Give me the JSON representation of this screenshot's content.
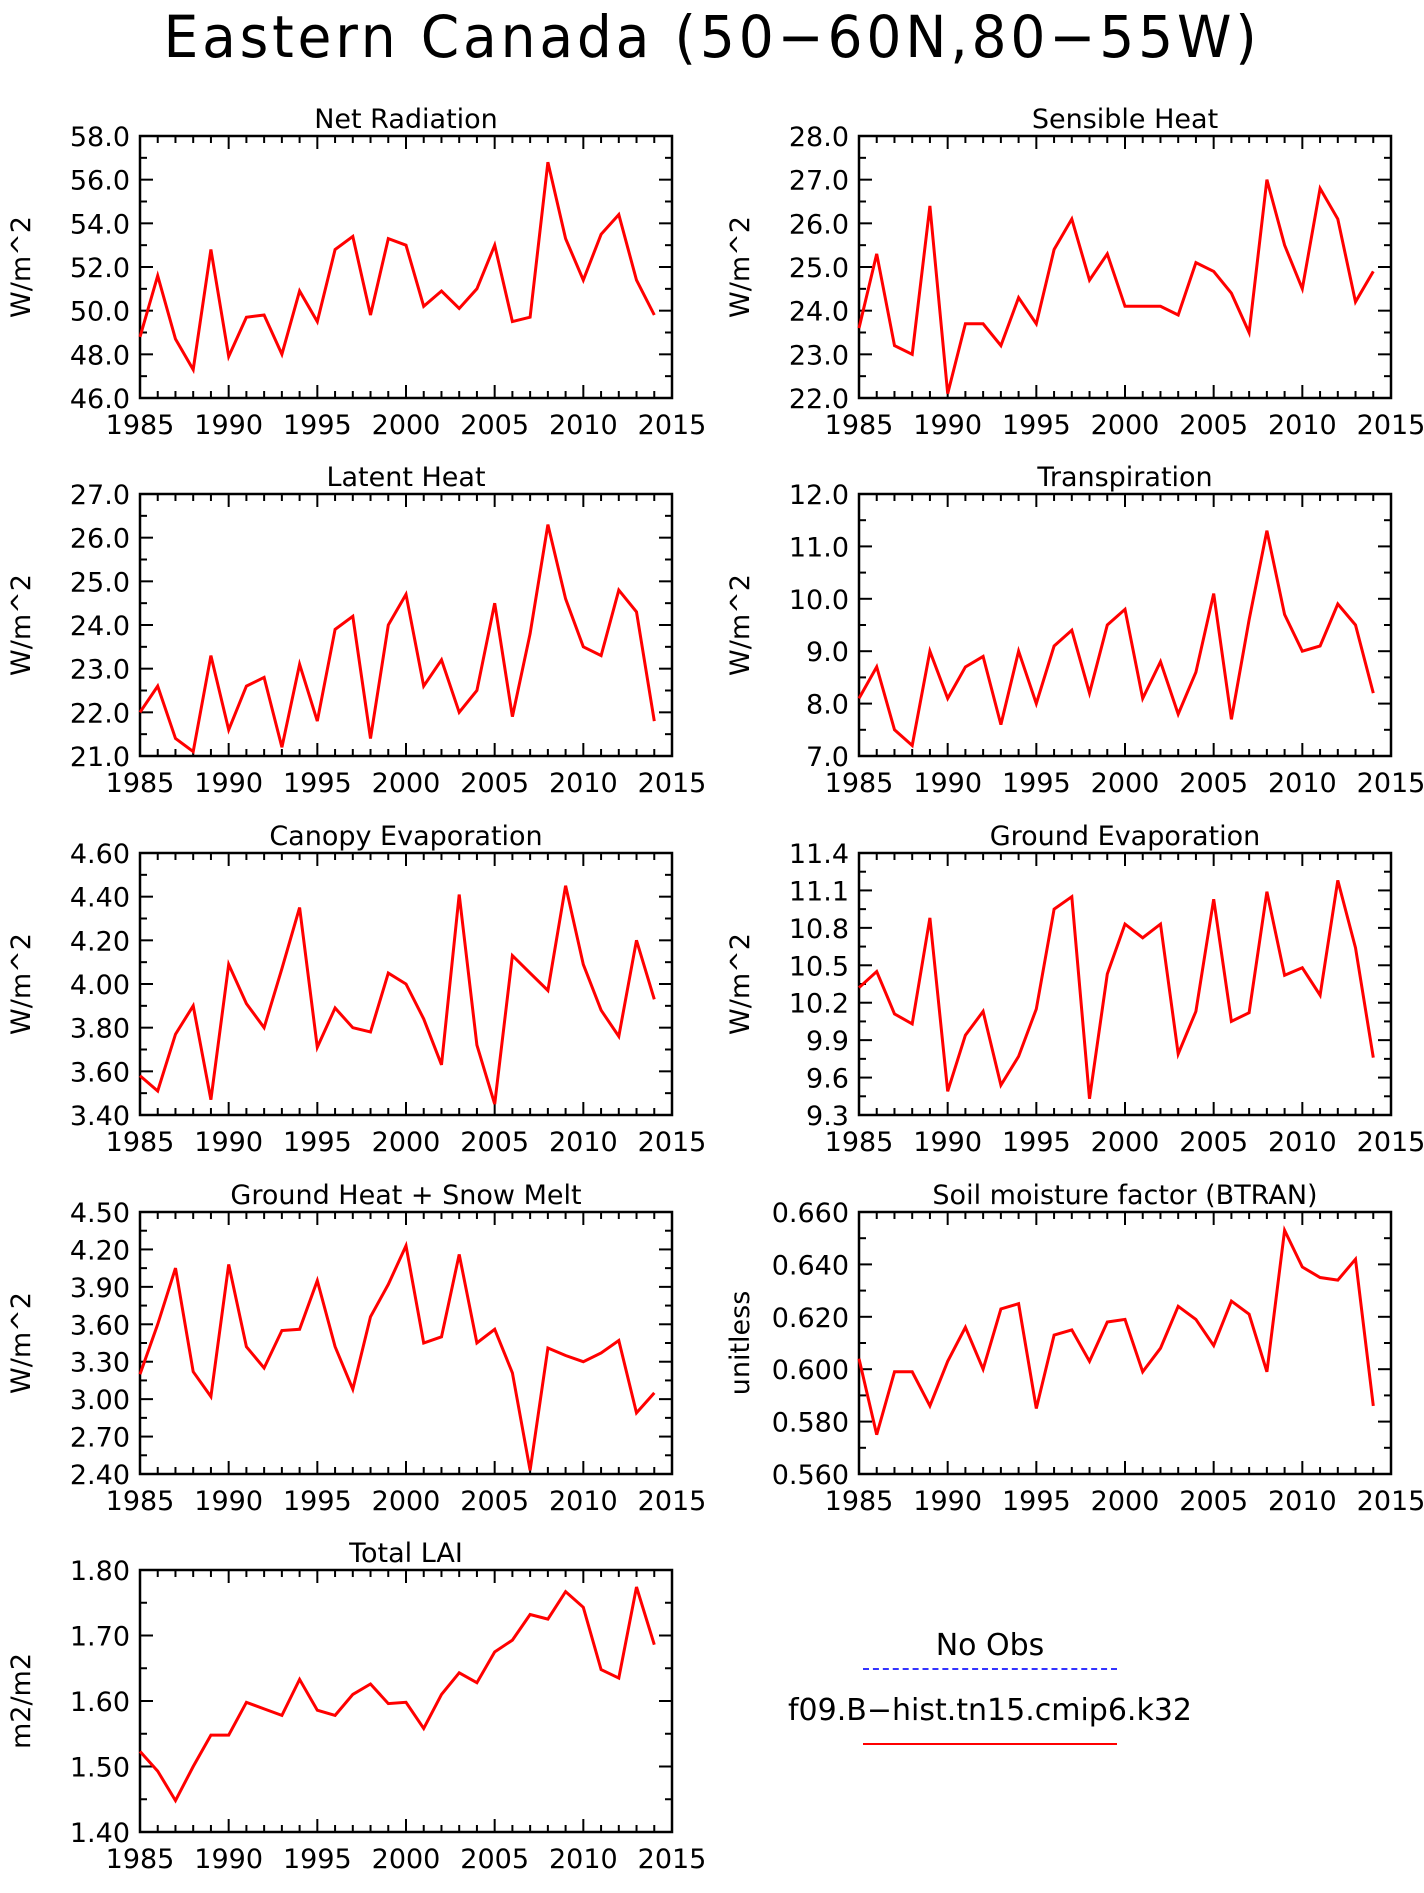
{
  "page": {
    "title": "Eastern Canada (50−60N,80−55W)"
  },
  "legend": {
    "obs_label": "No Obs",
    "obs_color": "#3333ff",
    "model_label": "f09.B−hist.tn15.cmip6.k32",
    "model_color": "#ff0000"
  },
  "chart_data": [
    {
      "type": "line",
      "title": "Net Radiation",
      "ylabel": "W/m^2",
      "xlim": [
        1985,
        2015
      ],
      "ylim": [
        46.0,
        58.0
      ],
      "xticks": [
        1985,
        1990,
        1995,
        2000,
        2005,
        2010,
        2015
      ],
      "yticks": [
        "46.0",
        "48.0",
        "50.0",
        "52.0",
        "54.0",
        "56.0",
        "58.0"
      ],
      "x": [
        1985,
        1986,
        1987,
        1988,
        1989,
        1990,
        1991,
        1992,
        1993,
        1994,
        1995,
        1996,
        1997,
        1998,
        1999,
        2000,
        2001,
        2002,
        2003,
        2004,
        2005,
        2006,
        2007,
        2008,
        2009,
        2010,
        2011,
        2012,
        2013,
        2014
      ],
      "series": [
        {
          "color": "#ff0000",
          "values": [
            48.8,
            51.6,
            48.7,
            47.3,
            52.8,
            47.9,
            49.7,
            49.8,
            48.0,
            50.9,
            49.5,
            52.8,
            53.4,
            49.8,
            53.3,
            53.0,
            50.2,
            50.9,
            50.1,
            51.0,
            53.0,
            49.5,
            49.7,
            56.8,
            53.3,
            51.4,
            53.5,
            54.4,
            51.4,
            49.8
          ]
        }
      ]
    },
    {
      "type": "line",
      "title": "Sensible Heat",
      "ylabel": "W/m^2",
      "xlim": [
        1985,
        2015
      ],
      "ylim": [
        22.0,
        28.0
      ],
      "xticks": [
        1985,
        1990,
        1995,
        2000,
        2005,
        2010,
        2015
      ],
      "yticks": [
        "22.0",
        "23.0",
        "24.0",
        "25.0",
        "26.0",
        "27.0",
        "28.0"
      ],
      "x": [
        1985,
        1986,
        1987,
        1988,
        1989,
        1990,
        1991,
        1992,
        1993,
        1994,
        1995,
        1996,
        1997,
        1998,
        1999,
        2000,
        2001,
        2002,
        2003,
        2004,
        2005,
        2006,
        2007,
        2008,
        2009,
        2010,
        2011,
        2012,
        2013,
        2014
      ],
      "series": [
        {
          "color": "#ff0000",
          "values": [
            23.6,
            25.3,
            23.2,
            23.0,
            26.4,
            22.1,
            23.7,
            23.7,
            23.2,
            24.3,
            23.7,
            25.4,
            26.1,
            24.7,
            25.3,
            24.1,
            24.1,
            24.1,
            23.9,
            25.1,
            24.9,
            24.4,
            23.5,
            27.0,
            25.5,
            24.5,
            26.8,
            26.1,
            24.2,
            24.9
          ]
        }
      ]
    },
    {
      "type": "line",
      "title": "Latent Heat",
      "ylabel": "W/m^2",
      "xlim": [
        1985,
        2015
      ],
      "ylim": [
        21.0,
        27.0
      ],
      "xticks": [
        1985,
        1990,
        1995,
        2000,
        2005,
        2010,
        2015
      ],
      "yticks": [
        "21.0",
        "22.0",
        "23.0",
        "24.0",
        "25.0",
        "26.0",
        "27.0"
      ],
      "x": [
        1985,
        1986,
        1987,
        1988,
        1989,
        1990,
        1991,
        1992,
        1993,
        1994,
        1995,
        1996,
        1997,
        1998,
        1999,
        2000,
        2001,
        2002,
        2003,
        2004,
        2005,
        2006,
        2007,
        2008,
        2009,
        2010,
        2011,
        2012,
        2013,
        2014
      ],
      "series": [
        {
          "color": "#ff0000",
          "values": [
            22.0,
            22.6,
            21.4,
            21.1,
            23.3,
            21.6,
            22.6,
            22.8,
            21.2,
            23.1,
            21.8,
            23.9,
            24.2,
            21.4,
            24.0,
            24.7,
            22.6,
            23.2,
            22.0,
            22.5,
            24.5,
            21.9,
            23.8,
            26.3,
            24.6,
            23.5,
            23.3,
            24.8,
            24.3,
            21.8
          ]
        }
      ]
    },
    {
      "type": "line",
      "title": "Transpiration",
      "ylabel": "W/m^2",
      "xlim": [
        1985,
        2015
      ],
      "ylim": [
        7.0,
        12.0
      ],
      "xticks": [
        1985,
        1990,
        1995,
        2000,
        2005,
        2010,
        2015
      ],
      "yticks": [
        "7.0",
        "8.0",
        "9.0",
        "10.0",
        "11.0",
        "12.0"
      ],
      "x": [
        1985,
        1986,
        1987,
        1988,
        1989,
        1990,
        1991,
        1992,
        1993,
        1994,
        1995,
        1996,
        1997,
        1998,
        1999,
        2000,
        2001,
        2002,
        2003,
        2004,
        2005,
        2006,
        2007,
        2008,
        2009,
        2010,
        2011,
        2012,
        2013,
        2014
      ],
      "series": [
        {
          "color": "#ff0000",
          "values": [
            8.1,
            8.7,
            7.5,
            7.2,
            9.0,
            8.1,
            8.7,
            8.9,
            7.6,
            9.0,
            8.0,
            9.1,
            9.4,
            8.2,
            9.5,
            9.8,
            8.1,
            8.8,
            7.8,
            8.6,
            10.1,
            7.7,
            9.6,
            11.3,
            9.7,
            9.0,
            9.1,
            9.9,
            9.5,
            8.2
          ]
        }
      ]
    },
    {
      "type": "line",
      "title": "Canopy Evaporation",
      "ylabel": "W/m^2",
      "xlim": [
        1985,
        2015
      ],
      "ylim": [
        3.4,
        4.6
      ],
      "xticks": [
        1985,
        1990,
        1995,
        2000,
        2005,
        2010,
        2015
      ],
      "yticks": [
        "3.40",
        "3.60",
        "3.80",
        "4.00",
        "4.20",
        "4.40",
        "4.60"
      ],
      "x": [
        1985,
        1986,
        1987,
        1988,
        1989,
        1990,
        1991,
        1992,
        1993,
        1994,
        1995,
        1996,
        1997,
        1998,
        1999,
        2000,
        2001,
        2002,
        2003,
        2004,
        2005,
        2006,
        2007,
        2008,
        2009,
        2010,
        2011,
        2012,
        2013,
        2014
      ],
      "series": [
        {
          "color": "#ff0000",
          "values": [
            3.58,
            3.51,
            3.77,
            3.9,
            3.47,
            4.09,
            3.91,
            3.8,
            4.07,
            4.35,
            3.71,
            3.89,
            3.8,
            3.78,
            4.05,
            4.0,
            3.84,
            3.63,
            4.41,
            3.72,
            3.45,
            4.13,
            4.05,
            3.97,
            4.45,
            4.09,
            3.88,
            3.76,
            4.2,
            3.93
          ]
        }
      ]
    },
    {
      "type": "line",
      "title": "Ground Evaporation",
      "ylabel": "W/m^2",
      "xlim": [
        1985,
        2015
      ],
      "ylim": [
        9.3,
        11.4
      ],
      "xticks": [
        1985,
        1990,
        1995,
        2000,
        2005,
        2010,
        2015
      ],
      "yticks": [
        "9.3",
        "9.6",
        "9.9",
        "10.2",
        "10.5",
        "10.8",
        "11.1",
        "11.4"
      ],
      "x": [
        1985,
        1986,
        1987,
        1988,
        1989,
        1990,
        1991,
        1992,
        1993,
        1994,
        1995,
        1996,
        1997,
        1998,
        1999,
        2000,
        2001,
        2002,
        2003,
        2004,
        2005,
        2006,
        2007,
        2008,
        2009,
        2010,
        2011,
        2012,
        2013,
        2014
      ],
      "series": [
        {
          "color": "#ff0000",
          "values": [
            10.32,
            10.45,
            10.11,
            10.03,
            10.88,
            9.49,
            9.94,
            10.13,
            9.54,
            9.77,
            10.15,
            10.95,
            11.05,
            9.43,
            10.43,
            10.83,
            10.72,
            10.83,
            9.79,
            10.13,
            11.03,
            10.05,
            10.12,
            11.09,
            10.42,
            10.48,
            10.26,
            11.18,
            10.64,
            9.76
          ]
        }
      ]
    },
    {
      "type": "line",
      "title": "Ground Heat + Snow Melt",
      "ylabel": "W/m^2",
      "xlim": [
        1985,
        2015
      ],
      "ylim": [
        2.4,
        4.5
      ],
      "xticks": [
        1985,
        1990,
        1995,
        2000,
        2005,
        2010,
        2015
      ],
      "yticks": [
        "2.40",
        "2.70",
        "3.00",
        "3.30",
        "3.60",
        "3.90",
        "4.20",
        "4.50"
      ],
      "x": [
        1985,
        1986,
        1987,
        1988,
        1989,
        1990,
        1991,
        1992,
        1993,
        1994,
        1995,
        1996,
        1997,
        1998,
        1999,
        2000,
        2001,
        2002,
        2003,
        2004,
        2005,
        2006,
        2007,
        2008,
        2009,
        2010,
        2011,
        2012,
        2013,
        2014
      ],
      "series": [
        {
          "color": "#ff0000",
          "values": [
            3.2,
            3.6,
            4.05,
            3.22,
            3.02,
            4.08,
            3.42,
            3.25,
            3.55,
            3.56,
            3.95,
            3.42,
            3.08,
            3.66,
            3.92,
            4.23,
            3.45,
            3.5,
            4.16,
            3.45,
            3.56,
            3.21,
            2.43,
            3.41,
            3.35,
            3.3,
            3.37,
            3.47,
            2.89,
            3.05
          ]
        }
      ]
    },
    {
      "type": "line",
      "title": "Soil moisture factor (BTRAN)",
      "ylabel": "unitless",
      "xlim": [
        1985,
        2015
      ],
      "ylim": [
        0.56,
        0.66
      ],
      "xticks": [
        1985,
        1990,
        1995,
        2000,
        2005,
        2010,
        2015
      ],
      "yticks": [
        "0.560",
        "0.580",
        "0.600",
        "0.620",
        "0.640",
        "0.660"
      ],
      "x": [
        1985,
        1986,
        1987,
        1988,
        1989,
        1990,
        1991,
        1992,
        1993,
        1994,
        1995,
        1996,
        1997,
        1998,
        1999,
        2000,
        2001,
        2002,
        2003,
        2004,
        2005,
        2006,
        2007,
        2008,
        2009,
        2010,
        2011,
        2012,
        2013,
        2014
      ],
      "series": [
        {
          "color": "#ff0000",
          "values": [
            0.604,
            0.575,
            0.599,
            0.599,
            0.586,
            0.603,
            0.616,
            0.6,
            0.623,
            0.625,
            0.585,
            0.613,
            0.615,
            0.603,
            0.618,
            0.619,
            0.599,
            0.608,
            0.624,
            0.619,
            0.609,
            0.626,
            0.621,
            0.599,
            0.653,
            0.639,
            0.635,
            0.634,
            0.642,
            0.586
          ]
        }
      ]
    },
    {
      "type": "line",
      "title": "Total LAI",
      "ylabel": "m2/m2",
      "xlim": [
        1985,
        2015
      ],
      "ylim": [
        1.4,
        1.8
      ],
      "xticks": [
        1985,
        1990,
        1995,
        2000,
        2005,
        2010,
        2015
      ],
      "yticks": [
        "1.40",
        "1.50",
        "1.60",
        "1.70",
        "1.80"
      ],
      "x": [
        1985,
        1986,
        1987,
        1988,
        1989,
        1990,
        1991,
        1992,
        1993,
        1994,
        1995,
        1996,
        1997,
        1998,
        1999,
        2000,
        2001,
        2002,
        2003,
        2004,
        2005,
        2006,
        2007,
        2008,
        2009,
        2010,
        2011,
        2012,
        2013,
        2014
      ],
      "series": [
        {
          "color": "#ff0000",
          "values": [
            1.523,
            1.493,
            1.448,
            1.5,
            1.548,
            1.548,
            1.598,
            1.588,
            1.578,
            1.633,
            1.586,
            1.578,
            1.61,
            1.626,
            1.596,
            1.598,
            1.558,
            1.61,
            1.643,
            1.628,
            1.675,
            1.693,
            1.732,
            1.725,
            1.767,
            1.743,
            1.648,
            1.635,
            1.774,
            1.686
          ]
        }
      ]
    }
  ]
}
